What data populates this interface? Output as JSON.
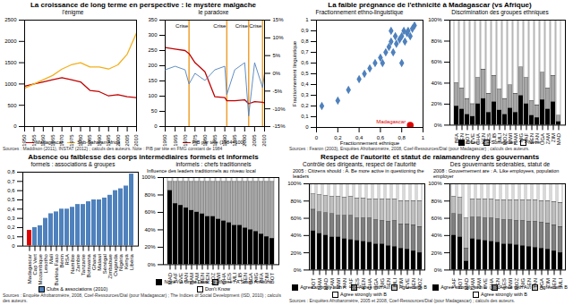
{
  "chart_data": [
    {
      "type": "line",
      "suptitle": "La croissance de long terme en perspective : le mystère malgache",
      "source": "Sources : Maddison (2011), INSTAT (2012) ; calculs des auteurs. Note : PIB par tête en FMG constant de 1984",
      "title": "l'énigme",
      "x": [
        1950,
        1955,
        1960,
        1965,
        1970,
        1975,
        1980,
        1985,
        1990,
        1995,
        2000,
        2005,
        2010
      ],
      "series": [
        {
          "name": "Madagascar",
          "color": "#c00000",
          "values": [
            950,
            1000,
            1050,
            1100,
            1150,
            1100,
            1050,
            850,
            820,
            720,
            750,
            700,
            680
          ]
        },
        {
          "name": "Sub-Saharan Africa",
          "color": "#f2b01e",
          "values": [
            900,
            1000,
            1100,
            1200,
            1350,
            1450,
            1500,
            1400,
            1400,
            1350,
            1450,
            1700,
            2200
          ]
        }
      ],
      "xlim": [
        1950,
        2010
      ],
      "xticks": [
        1950,
        1955,
        1960,
        1965,
        1970,
        1975,
        1980,
        1985,
        1990,
        1995,
        2000,
        2005,
        2010
      ],
      "ylim": [
        0,
        2500
      ],
      "yticks": [
        0,
        500,
        1000,
        1500,
        2000,
        2500
      ]
    },
    {
      "type": "line",
      "title": "le paradoxe",
      "x": [
        1960,
        1965,
        1970,
        1972,
        1975,
        1980,
        1985,
        1990,
        1991,
        1995,
        2000,
        2002,
        2005,
        2009,
        2010
      ],
      "series": [
        {
          "name": "PIB par tête (1984=100)",
          "color": "#c00000",
          "values": [
            260,
            255,
            250,
            240,
            210,
            180,
            98,
            95,
            85,
            85,
            88,
            75,
            82,
            80,
            78
          ]
        },
        {
          "color": "#4f81bd",
          "axis": "y2",
          "values": [
            1,
            2,
            1,
            -3,
            0,
            -2,
            1,
            2,
            -6,
            1,
            3,
            -12,
            3,
            -4,
            0
          ]
        }
      ],
      "xlim": [
        1960,
        2010
      ],
      "xticks": [
        1960,
        1965,
        1970,
        1975,
        1980,
        1985,
        1990,
        1995,
        2000,
        2005,
        2010
      ],
      "ylim": [
        0,
        350
      ],
      "yticks": [
        0,
        50,
        100,
        150,
        200,
        250,
        300,
        350
      ],
      "y2lim": [
        -15,
        15
      ],
      "y2ticks": [
        {
          "value": -15,
          "label": "-15%"
        },
        {
          "value": -10,
          "label": "-10%"
        },
        {
          "value": -5,
          "label": "-5%"
        },
        {
          "value": 0,
          "label": "0%"
        },
        {
          "value": 5,
          "label": "5%"
        },
        {
          "value": 10,
          "label": "10%"
        },
        {
          "value": 15,
          "label": "15%"
        }
      ],
      "annotations": [
        {
          "x": 1972,
          "text": "Crise"
        },
        {
          "x": 1991,
          "text": "Crise"
        },
        {
          "x": 2002,
          "text": "Crise"
        },
        {
          "x": 2009,
          "text": "Crise"
        }
      ]
    },
    {
      "type": "scatter",
      "suptitle": "La faible prégnance de l'ethnicité à Madagascar (vs Afrique)",
      "source": "Sources : Fearon (2003), Enquêtes Afrobaromètre, 2008, Coef-Ressources/Dial (pour Madagascar) ; calculs des auteurs.",
      "title": "Fractionnement ethno-linguistique",
      "xlabel": "Fractionnement ethnique",
      "ylabel": "Fractionnement linguistique",
      "series": [
        {
          "color": "#4f81bd",
          "marker": "diamond",
          "x": [
            0.05,
            0.2,
            0.3,
            0.4,
            0.45,
            0.5,
            0.55,
            0.6,
            0.62,
            0.65,
            0.68,
            0.7,
            0.72,
            0.74,
            0.75,
            0.78,
            0.8,
            0.82,
            0.83,
            0.85,
            0.86,
            0.88,
            0.9,
            0.92,
            0.8,
            0.7
          ],
          "y": [
            0.2,
            0.25,
            0.35,
            0.45,
            0.5,
            0.55,
            0.6,
            0.65,
            0.6,
            0.7,
            0.75,
            0.8,
            0.7,
            0.85,
            0.78,
            0.82,
            0.85,
            0.9,
            0.8,
            0.88,
            0.9,
            0.85,
            0.92,
            0.95,
            0.6,
            0.9
          ]
        },
        {
          "name": "Madagascar",
          "color": "#e00000",
          "marker": "circle",
          "x": [
            0.88
          ],
          "y": [
            0.02
          ]
        }
      ],
      "xlim": [
        0,
        1
      ],
      "xticks": [
        0,
        {
          "value": 0.2,
          "label": "0,2"
        },
        {
          "value": 0.4,
          "label": "0,4"
        },
        {
          "value": 0.6,
          "label": "0,6"
        },
        {
          "value": 0.8,
          "label": "0,8"
        },
        1
      ],
      "ylim": [
        0,
        1
      ],
      "yticks": [
        0,
        {
          "value": 0.1,
          "label": "0,1"
        },
        {
          "value": 0.2,
          "label": "0,2"
        },
        {
          "value": 0.3,
          "label": "0,3"
        },
        {
          "value": 0.4,
          "label": "0,4"
        },
        {
          "value": 0.5,
          "label": "0,5"
        },
        {
          "value": 0.6,
          "label": "0,6"
        },
        {
          "value": 0.7,
          "label": "0,7"
        },
        {
          "value": 0.8,
          "label": "0,8"
        },
        {
          "value": 0.9,
          "label": "0,9"
        },
        1
      ]
    },
    {
      "type": "bar",
      "stacked": true,
      "title": "Discrimination des groupes ethniques",
      "categories": [
        "BFA",
        "BEN",
        "BOT",
        "CVE",
        "GHA",
        "KEN",
        "LES",
        "LIB",
        "MLI",
        "MOZ",
        "MWI",
        "NAM",
        "NIG",
        "SAF",
        "SEN",
        "TAN",
        "UGA",
        "ZAM",
        "ZIM",
        "MAD"
      ],
      "series": [
        {
          "name": "Often",
          "color": "#000000",
          "values": [
            18,
            15,
            10,
            8,
            20,
            25,
            12,
            22,
            14,
            10,
            16,
            12,
            28,
            20,
            9,
            7,
            24,
            15,
            22,
            3
          ]
        },
        {
          "name": "Sometimes",
          "color": "#a6a6a6",
          "values": [
            22,
            20,
            15,
            12,
            25,
            28,
            18,
            25,
            20,
            15,
            22,
            18,
            27,
            25,
            14,
            12,
            26,
            20,
            25,
            6
          ]
        },
        {
          "name": "Never",
          "color": "#ffffff",
          "values": [
            60,
            65,
            75,
            80,
            55,
            47,
            70,
            53,
            66,
            75,
            62,
            70,
            45,
            55,
            77,
            81,
            50,
            65,
            53,
            91
          ]
        }
      ],
      "ylim": [
        0,
        100
      ],
      "yticks": [
        {
          "value": 0,
          "label": "0%"
        },
        {
          "value": 20,
          "label": "20%"
        },
        {
          "value": 40,
          "label": "40%"
        },
        {
          "value": 60,
          "label": "60%"
        },
        {
          "value": 80,
          "label": "80%"
        },
        {
          "value": 100,
          "label": "100%"
        }
      ]
    },
    {
      "type": "bar",
      "suptitle": "Absence ou faiblesse des corps intermédiaires formels et informels",
      "source": "Sources : Enquête Afrobaromètre, 2008, Coef-Ressources/Dial (pour Madagascar) ; The Indices of Social Development (ISD, 2010) ; calculs des auteurs.",
      "title": "formels : associations & groupes",
      "categories": [
        "Madagascar",
        "Cap Vert",
        "Mozambique",
        "Lesotho",
        "Mali",
        "Burkina Faso",
        "Bénin",
        "RSA",
        "Namibie",
        "Zambie",
        "Tanzanie",
        "Botswana",
        "Ghana",
        "Malawi",
        "Sénégal",
        "Zimbabwe",
        "Ouganda",
        "Nigéria",
        "Kenya",
        "Libéria"
      ],
      "series": [
        {
          "name": "Clubs & associations (2010)",
          "color": "#4f81bd",
          "values": [
            0.17,
            0.2,
            0.22,
            0.3,
            0.35,
            0.37,
            0.4,
            0.4,
            0.42,
            0.45,
            0.45,
            0.48,
            0.5,
            0.5,
            0.52,
            0.55,
            0.6,
            0.62,
            0.65,
            0.78
          ]
        }
      ],
      "colors": [
        "#e00000",
        "#4f81bd",
        "#4f81bd",
        "#4f81bd",
        "#4f81bd",
        "#4f81bd",
        "#4f81bd",
        "#4f81bd",
        "#4f81bd",
        "#4f81bd",
        "#4f81bd",
        "#4f81bd",
        "#4f81bd",
        "#4f81bd",
        "#4f81bd",
        "#4f81bd",
        "#4f81bd",
        "#4f81bd",
        "#4f81bd",
        "#4f81bd"
      ],
      "ylim": [
        0,
        0.8
      ],
      "yticks": [
        0,
        {
          "value": 0.1,
          "label": "0,1"
        },
        {
          "value": 0.2,
          "label": "0,2"
        },
        {
          "value": 0.3,
          "label": "0,3"
        },
        {
          "value": 0.4,
          "label": "0,4"
        },
        {
          "value": 0.5,
          "label": "0,5"
        },
        {
          "value": 0.6,
          "label": "0,6"
        },
        {
          "value": 0.7,
          "label": "0,7"
        },
        {
          "value": 0.8,
          "label": "0,8"
        }
      ]
    },
    {
      "type": "bar",
      "stacked": true,
      "title": "informels : chefs traditionnels",
      "subtitle": "Influence des leaders traditionnels au niveau local",
      "categories": [
        "MAD",
        "SAF",
        "CVE",
        "TAN",
        "NAM",
        "ZAM",
        "BEN",
        "KEN",
        "MOZ",
        "MWI",
        "GHA",
        "LES",
        "MLI",
        "LIB",
        "SEN",
        "UGA",
        "NIG",
        "BFA",
        "ZIM",
        "BOT"
      ],
      "series": [
        {
          "name": "None / A Great Deal",
          "color": "#000000",
          "values": [
            85,
            70,
            68,
            65,
            62,
            60,
            58,
            55,
            55,
            52,
            50,
            48,
            45,
            45,
            42,
            40,
            38,
            35,
            32,
            30
          ]
        },
        {
          "name": "None / A Small Amount",
          "color": "#a6a6a6",
          "values": [
            10,
            25,
            27,
            30,
            33,
            35,
            37,
            40,
            40,
            43,
            45,
            47,
            50,
            50,
            53,
            55,
            57,
            60,
            63,
            65
          ]
        },
        {
          "name": "Don't Know",
          "color": "#ffffff",
          "values": [
            5,
            5,
            5,
            5,
            5,
            5,
            5,
            5,
            5,
            5,
            5,
            5,
            5,
            5,
            5,
            5,
            5,
            5,
            5,
            5
          ]
        }
      ],
      "ylim": [
        0,
        100
      ],
      "yticks": [
        {
          "value": 0,
          "label": "0%"
        },
        {
          "value": 20,
          "label": "20%"
        },
        {
          "value": 40,
          "label": "40%"
        },
        {
          "value": 60,
          "label": "60%"
        },
        {
          "value": 80,
          "label": "80%"
        },
        {
          "value": 100,
          "label": "100%"
        }
      ]
    },
    {
      "type": "bar",
      "stacked": true,
      "suptitle": "Respect de l'autorité et statut de raiamandreny des gouvernants",
      "source": "Sources : Enquêtes Afrobaromètre, 2005 et 2008, Coef-Ressources/Dial (pour Madagascar) ; calculs des auteurs.",
      "title": "Contrôle des dirigeants, respect de l'autorité",
      "subtitle": "2005 : Citizens should : A. Be more active in questioning the leaders",
      "categories": [
        "BOT",
        "NAM",
        "MAD",
        "ZAM",
        "MWI",
        "TAN",
        "SAF",
        "LES",
        "KEN",
        "GHA",
        "UGA",
        "NIG",
        "SEN",
        "MLI",
        "ZIM",
        "CVE",
        "BEN",
        "MOZ"
      ],
      "series": [
        {
          "name": "Agree strongly with A",
          "color": "#000000",
          "values": [
            45,
            42,
            40,
            38,
            38,
            36,
            35,
            34,
            33,
            32,
            30,
            30,
            28,
            27,
            25,
            24,
            22,
            20
          ]
        },
        {
          "name": "Agree with A",
          "color": "#7f7f7f",
          "values": [
            25,
            25,
            26,
            27,
            25,
            27,
            28,
            26,
            27,
            28,
            28,
            27,
            28,
            30,
            28,
            29,
            30,
            30
          ]
        },
        {
          "name": "Agree with B",
          "color": "#bfbfbf",
          "values": [
            18,
            20,
            20,
            20,
            22,
            21,
            22,
            23,
            23,
            22,
            24,
            25,
            26,
            25,
            27,
            27,
            28,
            30
          ]
        },
        {
          "name": "Agree strongly with B",
          "color": "#ffffff",
          "values": [
            12,
            13,
            14,
            15,
            15,
            16,
            15,
            17,
            17,
            18,
            18,
            18,
            18,
            18,
            20,
            20,
            20,
            20
          ]
        }
      ],
      "ylim": [
        0,
        100
      ],
      "yticks": [
        {
          "value": 0,
          "label": "0%"
        },
        {
          "value": 20,
          "label": "20%"
        },
        {
          "value": 40,
          "label": "40%"
        },
        {
          "value": 60,
          "label": "60%"
        },
        {
          "value": 80,
          "label": "80%"
        },
        {
          "value": 100,
          "label": "100%"
        }
      ]
    },
    {
      "type": "bar",
      "stacked": true,
      "title": "Des gouvernants sederables, statut de",
      "subtitle": "2008 : Gouvernement are : A. Like employees, population employer",
      "categories": [
        "SAF",
        "BOT",
        "MAD",
        "NAM",
        "ZAM",
        "CVE",
        "GHA",
        "KEN",
        "LES",
        "MWI",
        "MOZ",
        "NIG",
        "SEN",
        "TAN",
        "UGA",
        "ZIM",
        "BEN",
        "MLI"
      ],
      "series": [
        {
          "name": "Agree strongly with A",
          "color": "#000000",
          "values": [
            40,
            38,
            10,
            36,
            35,
            34,
            33,
            32,
            30,
            30,
            29,
            28,
            27,
            26,
            25,
            24,
            22,
            20
          ]
        },
        {
          "name": "Agree with A",
          "color": "#7f7f7f",
          "values": [
            25,
            26,
            15,
            25,
            26,
            26,
            27,
            27,
            28,
            28,
            28,
            29,
            29,
            30,
            30,
            30,
            30,
            30
          ]
        },
        {
          "name": "Agree with B",
          "color": "#bfbfbf",
          "values": [
            20,
            20,
            35,
            21,
            21,
            22,
            22,
            22,
            23,
            23,
            24,
            24,
            25,
            25,
            25,
            26,
            27,
            28
          ]
        },
        {
          "name": "Agree strongly with B",
          "color": "#ffffff",
          "values": [
            15,
            16,
            40,
            18,
            18,
            18,
            18,
            19,
            19,
            19,
            19,
            19,
            19,
            19,
            20,
            20,
            21,
            22
          ]
        }
      ],
      "ylim": [
        0,
        100
      ],
      "yticks": [
        {
          "value": 0,
          "label": "0%"
        },
        {
          "value": 20,
          "label": "20%"
        },
        {
          "value": 40,
          "label": "40%"
        },
        {
          "value": 60,
          "label": "60%"
        },
        {
          "value": 80,
          "label": "80%"
        },
        {
          "value": 100,
          "label": "100%"
        }
      ]
    }
  ]
}
